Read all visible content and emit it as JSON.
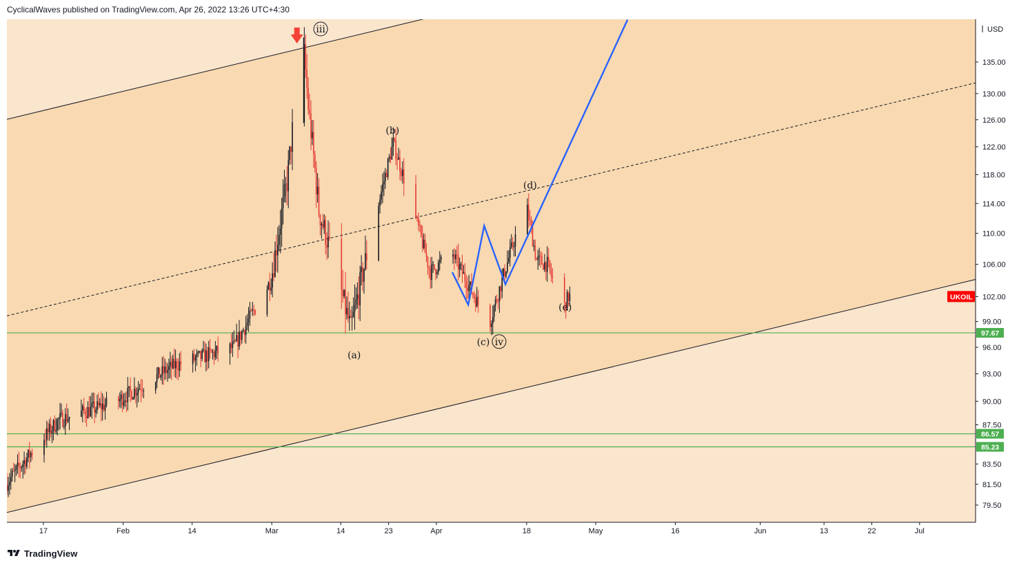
{
  "header": {
    "text": "CyclicalWaves published on TradingView.com, Apr 26, 2022 13:26 UTC+4:30"
  },
  "footer": {
    "brand": "TradingView",
    "logo_icon": "tradingview-logo-icon"
  },
  "colors": {
    "background_outer": "#fae5cd",
    "background_channel": "#f8d9b1",
    "candle_up": "#131722",
    "candle_down": "#e53935",
    "support_line": "#4caf50",
    "projection_line": "#2962ff",
    "badge_green": "#4caf50",
    "badge_red": "#ff0000",
    "arrow": "#f44336"
  },
  "price_axis": {
    "currency": "USD",
    "ticks": [
      135.0,
      130.0,
      126.0,
      122.0,
      118.0,
      114.0,
      110.0,
      106.0,
      102.0,
      99.0,
      96.0,
      93.0,
      90.0,
      87.5,
      83.5,
      81.5,
      79.5
    ],
    "tick_labels": [
      "135.00",
      "130.00",
      "126.00",
      "122.00",
      "118.00",
      "114.00",
      "110.00",
      "106.00",
      "102.00",
      "99.00",
      "96.00",
      "93.00",
      "90.00",
      "87.50",
      "83.50",
      "81.50",
      "79.50"
    ]
  },
  "time_axis": {
    "labels": [
      "17",
      "Feb",
      "14",
      "Mar",
      "14",
      "23",
      "Apr",
      "18",
      "May",
      "16",
      "Jun",
      "13",
      "22",
      "Jul"
    ]
  },
  "symbol_badge": {
    "label": "UKOIL",
    "price": 102.0
  },
  "levels": [
    {
      "price": 97.67,
      "label": "97.67"
    },
    {
      "price": 86.57,
      "label": "86.57"
    },
    {
      "price": 85.23,
      "label": "85.23"
    }
  ],
  "annotations": {
    "wave_iii": "iii",
    "wave_iv": "iv",
    "wave_a": "(a)",
    "wave_b": "(b)",
    "wave_c": "(c)",
    "wave_d": "(d)",
    "wave_e": "(e)",
    "arrow_icon": "arrow-down-icon"
  },
  "chart_data": {
    "type": "candlestick",
    "symbol": "UKOIL",
    "currency": "USD",
    "start_date": "2022-01-10",
    "key_points": [
      {
        "date": "2022-01-10",
        "price": 81.5
      },
      {
        "date": "2022-01-20",
        "price": 88.0
      },
      {
        "date": "2022-01-31",
        "price": 90.0
      },
      {
        "date": "2022-02-11",
        "price": 94.0
      },
      {
        "date": "2022-02-22",
        "price": 96.0
      },
      {
        "date": "2022-03-01",
        "price": 104.0
      },
      {
        "date": "2022-03-04",
        "price": 117.0
      },
      {
        "date": "2022-03-07",
        "price": 139.0
      },
      {
        "date": "2022-03-08",
        "price": 128.0
      },
      {
        "date": "2022-03-10",
        "price": 113.0
      },
      {
        "date": "2022-03-16",
        "price": 98.0
      },
      {
        "date": "2022-03-24",
        "price": 122.5
      },
      {
        "date": "2022-03-31",
        "price": 105.0
      },
      {
        "date": "2022-04-04",
        "price": 107.5
      },
      {
        "date": "2022-04-11",
        "price": 98.5
      },
      {
        "date": "2022-04-18",
        "price": 114.0
      },
      {
        "date": "2022-04-20",
        "price": 106.5
      },
      {
        "date": "2022-04-22",
        "price": 106.0
      },
      {
        "date": "2022-04-25",
        "price": 100.5
      },
      {
        "date": "2022-04-26",
        "price": 102.0
      }
    ],
    "projection_path": [
      {
        "date": "2022-04-04",
        "price": 105.0
      },
      {
        "date": "2022-04-07",
        "price": 101.0
      },
      {
        "date": "2022-04-10",
        "price": 111.0
      },
      {
        "date": "2022-04-14",
        "price": 103.5
      },
      {
        "date": "2022-05-07",
        "price": 142.0
      }
    ],
    "horizontal_levels": [
      97.67,
      86.57,
      85.23
    ],
    "ylim": [
      78.0,
      140.0
    ],
    "xlim": [
      "2022-01-09",
      "2022-07-13"
    ],
    "scale": "log"
  }
}
